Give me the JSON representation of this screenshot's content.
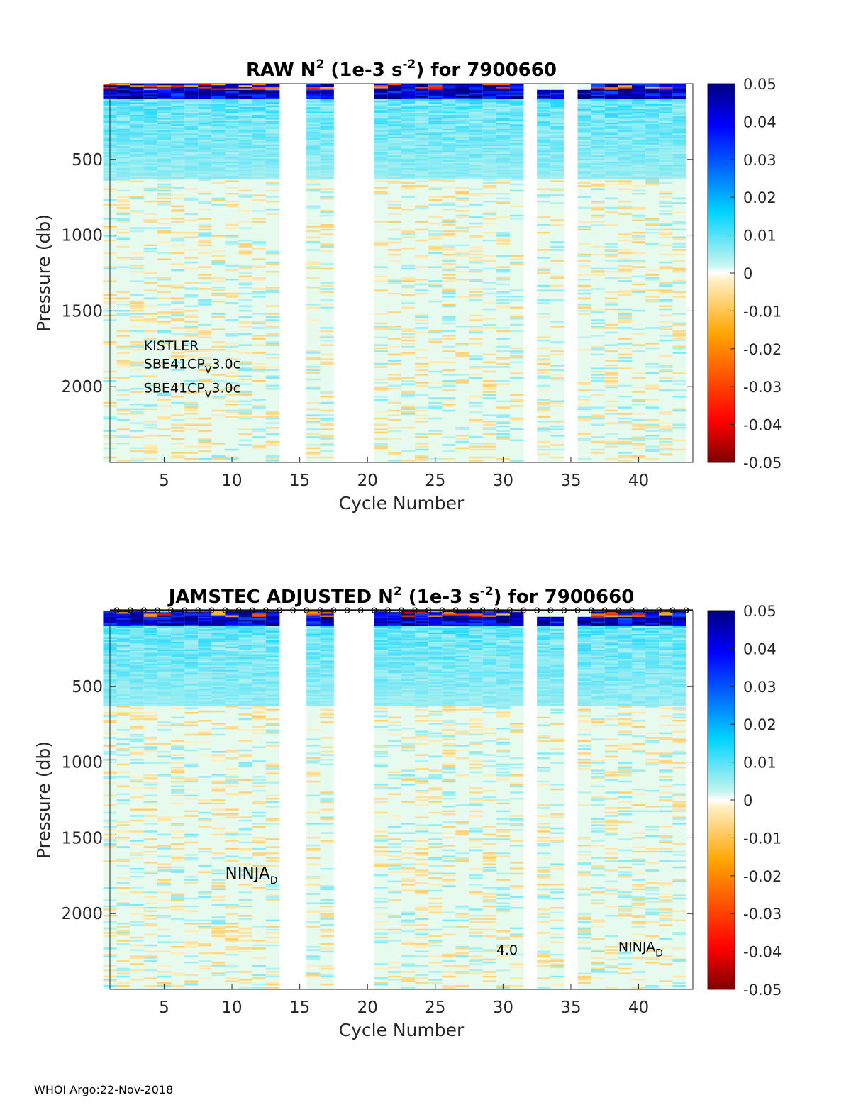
{
  "footer": "WHOI Argo:22-Nov-2018",
  "colors": {
    "colormap": "jet",
    "background": "#ffffff",
    "missing_profile": "#ffffff"
  },
  "chart_data": [
    {
      "type": "heatmap",
      "title_main": "RAW N",
      "title_sup": "2",
      "title_units_pre": "(1e-3 s",
      "title_units_sup": "-2",
      "title_units_post": ") for 7900660",
      "xlabel": "Cycle Number",
      "ylabel": "Pressure (db)",
      "x_ticks": [
        "5",
        "10",
        "15",
        "20",
        "25",
        "30",
        "35",
        "40"
      ],
      "y_ticks": [
        "500",
        "1000",
        "1500",
        "2000"
      ],
      "xlim": [
        1,
        44
      ],
      "ylim": [
        2500,
        0
      ],
      "y_reversed": true,
      "colorbar": {
        "range": [
          -0.05,
          0.05
        ],
        "ticks": [
          "0.05",
          "0.04",
          "0.03",
          "0.02",
          "0.01",
          "0",
          "-0.01",
          "-0.02",
          "-0.03",
          "-0.04",
          "-0.05"
        ]
      },
      "cycles_present": [
        1,
        2,
        3,
        4,
        5,
        6,
        7,
        8,
        9,
        10,
        11,
        12,
        13,
        16,
        17,
        21,
        22,
        23,
        24,
        25,
        26,
        27,
        28,
        29,
        30,
        31,
        33,
        34,
        36,
        37,
        38,
        39,
        40,
        41,
        42,
        43
      ],
      "cycles_missing": [
        14,
        15,
        18,
        19,
        20,
        32,
        35
      ],
      "surface_high_n2_depth_db": 100,
      "annotations": [
        {
          "text": "KISTLER",
          "sub": "",
          "suffix": "",
          "cycle": 4,
          "pressure": 1760
        },
        {
          "text": "SBE41CP",
          "sub": "V",
          "suffix": "3.0c",
          "cycle": 4,
          "pressure": 1880
        },
        {
          "text": "SBE41CP",
          "sub": "V",
          "suffix": "3.0c",
          "cycle": 4,
          "pressure": 2040
        }
      ],
      "cycle_markers": false
    },
    {
      "type": "heatmap",
      "title_main": "JAMSTEC  ADJUSTED N",
      "title_sup": "2",
      "title_units_pre": "(1e-3 s",
      "title_units_sup": "-2",
      "title_units_post": ") for 7900660",
      "xlabel": "Cycle Number",
      "ylabel": "Pressure (db)",
      "x_ticks": [
        "5",
        "10",
        "15",
        "20",
        "25",
        "30",
        "35",
        "40"
      ],
      "y_ticks": [
        "500",
        "1000",
        "1500",
        "2000"
      ],
      "xlim": [
        1,
        44
      ],
      "ylim": [
        2500,
        0
      ],
      "y_reversed": true,
      "colorbar": {
        "range": [
          -0.05,
          0.05
        ],
        "ticks": [
          "0.05",
          "0.04",
          "0.03",
          "0.02",
          "0.01",
          "0",
          "-0.01",
          "-0.02",
          "-0.03",
          "-0.04",
          "-0.05"
        ]
      },
      "cycles_present": [
        1,
        2,
        3,
        4,
        5,
        6,
        7,
        8,
        9,
        10,
        11,
        12,
        13,
        16,
        17,
        21,
        22,
        23,
        24,
        25,
        26,
        27,
        28,
        29,
        30,
        31,
        33,
        34,
        36,
        37,
        38,
        39,
        40,
        41,
        42,
        43
      ],
      "cycles_missing": [
        14,
        15,
        18,
        19,
        20,
        32,
        35
      ],
      "surface_high_n2_depth_db": 100,
      "annotations": [
        {
          "text": "NINJA",
          "sub": "D",
          "suffix": "",
          "cycle": 10,
          "pressure": 1770,
          "big": true
        },
        {
          "text": "4.0",
          "sub": "",
          "suffix": "",
          "cycle": 30,
          "pressure": 2270
        },
        {
          "text": "NINJA",
          "sub": "D",
          "suffix": "",
          "cycle": 39,
          "pressure": 2250
        }
      ],
      "cycle_markers": true,
      "cycle_marker_glyph": "o"
    }
  ]
}
